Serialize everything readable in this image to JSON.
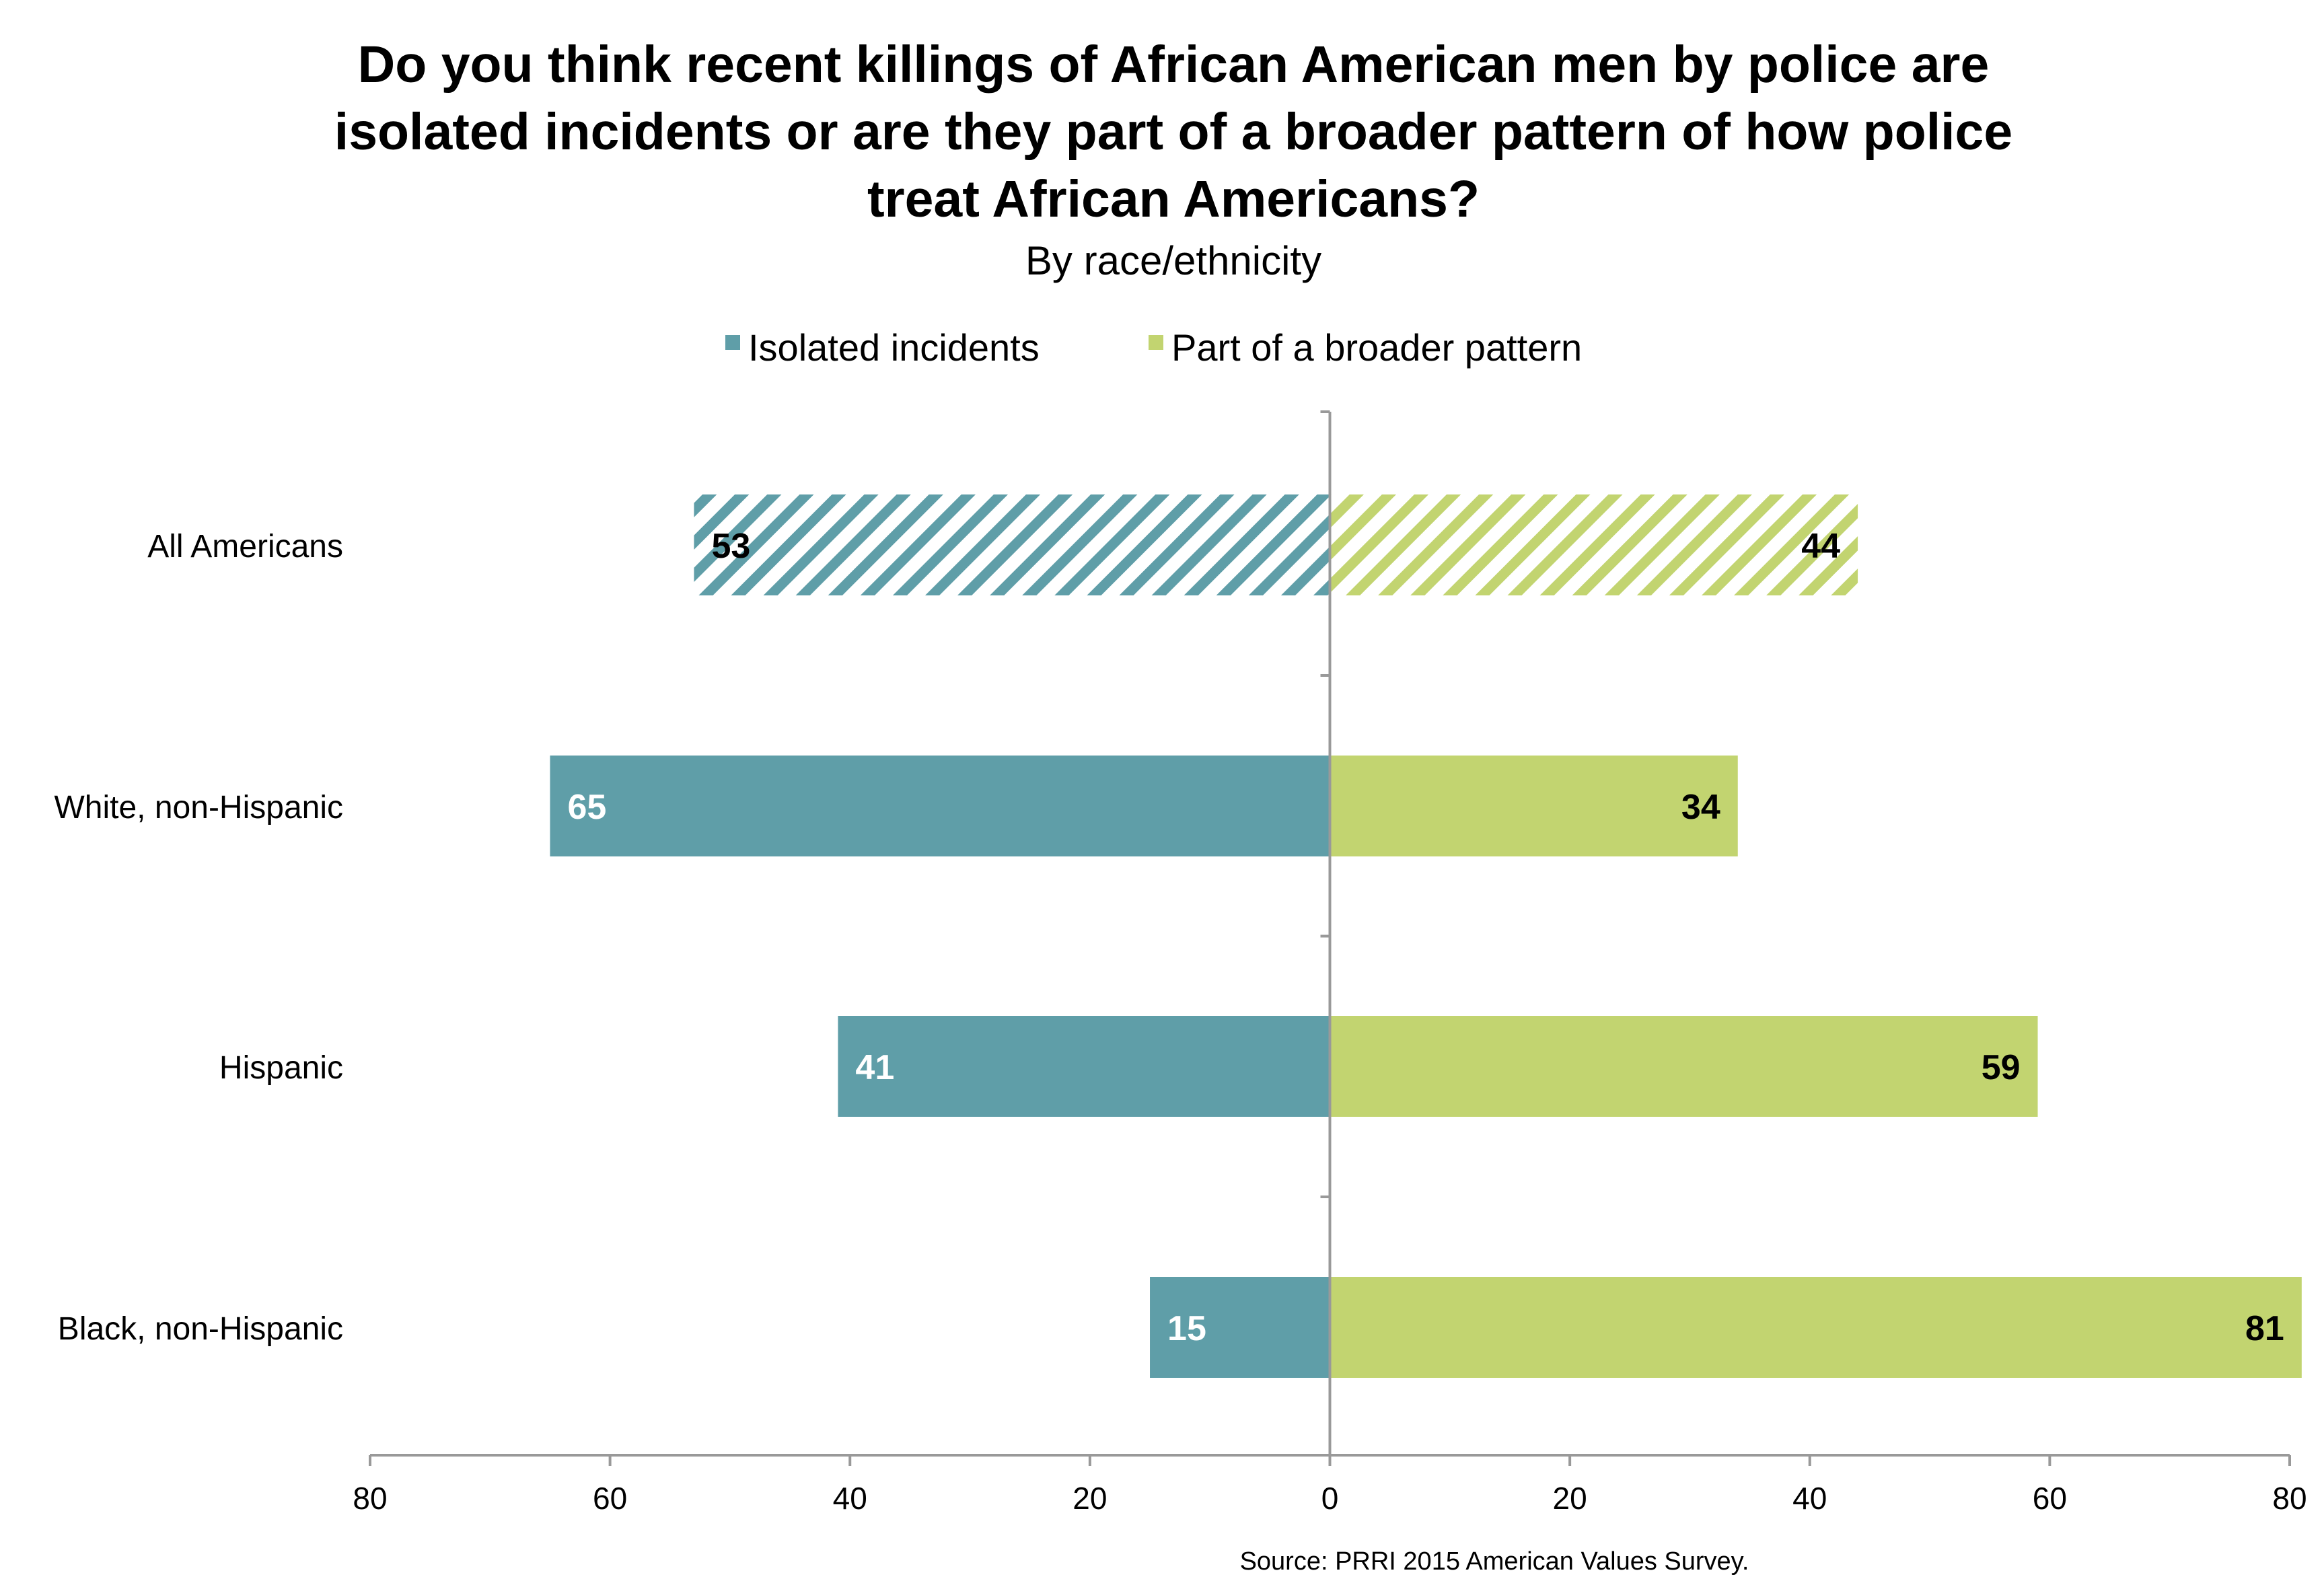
{
  "chart_data": {
    "type": "bar",
    "orientation": "horizontal-diverging",
    "title_lines": [
      "Do you think recent killings of African American men by police are",
      "isolated incidents or are they part of a broader pattern of how police",
      "treat African Americans?"
    ],
    "subtitle": "By race/ethnicity",
    "categories": [
      "All Americans",
      "White, non-Hispanic",
      "Hispanic",
      "Black, non-Hispanic"
    ],
    "series": [
      {
        "name": "Isolated incidents",
        "direction": "left",
        "color": "#5f9ea8",
        "values": [
          53,
          65,
          41,
          15
        ],
        "label_colors": [
          "#000000",
          "#ffffff",
          "#ffffff",
          "#ffffff"
        ]
      },
      {
        "name": "Part of a broader pattern",
        "direction": "right",
        "color": "#c2d470",
        "values": [
          44,
          34,
          59,
          81
        ],
        "label_colors": [
          "#000000",
          "#000000",
          "#000000",
          "#000000"
        ]
      }
    ],
    "hatched_categories": [
      "All Americans"
    ],
    "xlim": [
      -80,
      80
    ],
    "ticks": [
      -80,
      -60,
      -40,
      -20,
      0,
      20,
      40,
      60,
      80
    ],
    "tick_labels": [
      "80",
      "60",
      "40",
      "20",
      "0",
      "20",
      "40",
      "60",
      "80"
    ],
    "legend_position": "top-center",
    "source": "Source: PRRI 2015 American Values Survey.",
    "axis_color": "#999999"
  }
}
